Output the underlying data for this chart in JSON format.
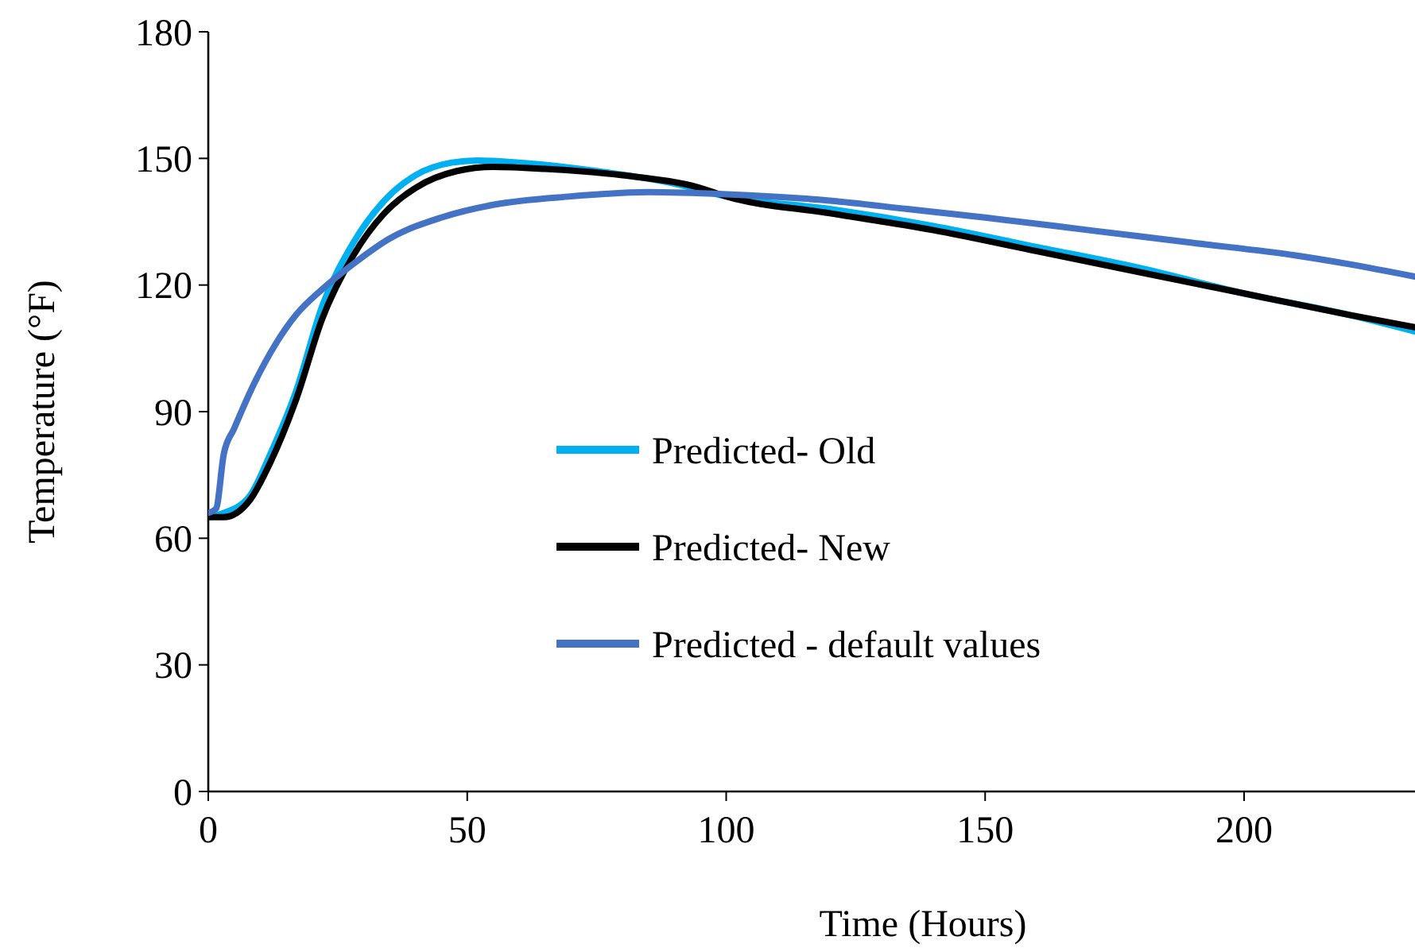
{
  "chart_data": {
    "type": "line",
    "xlabel": "Time (Hours)",
    "ylabel": "Temperature (°F)",
    "xlim": [
      0,
      233
    ],
    "ylim": [
      0,
      180
    ],
    "xticks": [
      0,
      50,
      100,
      150,
      200
    ],
    "yticks": [
      0,
      30,
      60,
      90,
      120,
      150,
      180
    ],
    "legend": "center",
    "grid": false,
    "marker": "none",
    "line_style": "solid",
    "series": [
      {
        "name": "Predicted- Old",
        "color": "#00b0f0",
        "x": [
          0,
          3,
          8,
          12,
          17,
          22,
          28,
          34,
          40,
          47,
          52,
          60,
          75,
          90,
          100,
          120,
          140,
          160,
          180,
          200,
          220,
          233
        ],
        "values": [
          65,
          66,
          70,
          80,
          95,
          115,
          130,
          140,
          146,
          149,
          149.5,
          149,
          147,
          144,
          141,
          138,
          134,
          129,
          124,
          118,
          113,
          109
        ]
      },
      {
        "name": "Predicted- New",
        "color": "#000000",
        "x": [
          0,
          3,
          8,
          12,
          17,
          22,
          28,
          34,
          40,
          48,
          55,
          65,
          80,
          95,
          100,
          120,
          140,
          160,
          180,
          200,
          220,
          233
        ],
        "values": [
          65,
          65,
          69,
          78,
          93,
          112,
          127,
          137,
          143,
          147,
          148,
          147.5,
          146,
          143,
          141,
          137,
          133,
          128,
          123,
          118,
          113,
          110
        ]
      },
      {
        "name": "Predicted - default values",
        "color": "#4472c4",
        "x": [
          0,
          1.5,
          3,
          5,
          9,
          13,
          17,
          22,
          28,
          35,
          45,
          55,
          70,
          85,
          100,
          120,
          135,
          150,
          170,
          190,
          210,
          220,
          233
        ],
        "values": [
          66,
          67,
          80,
          86,
          97,
          106,
          113,
          119,
          125,
          131,
          136,
          139,
          141,
          142,
          141.5,
          140,
          138,
          136,
          133,
          130,
          127,
          125,
          122
        ]
      }
    ]
  }
}
